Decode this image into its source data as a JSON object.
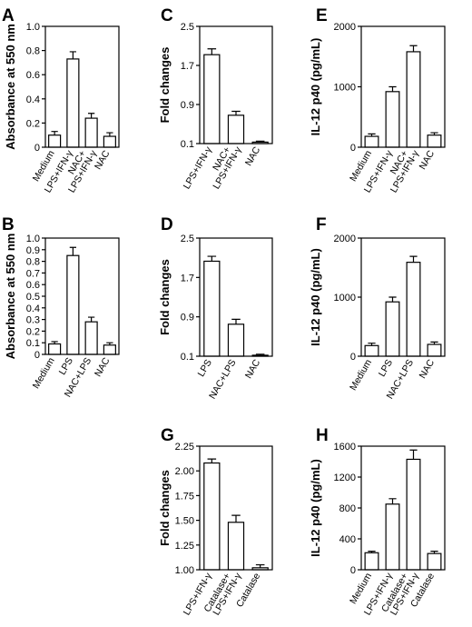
{
  "chart_data": [
    {
      "panel": "A",
      "type": "bar",
      "ylabel": "Absorbance at 550 nm",
      "ylim": [
        0,
        1.0
      ],
      "yticks": [
        "0",
        "0.2",
        "0.4",
        "0.6",
        "0.8",
        "1.0"
      ],
      "categories": [
        [
          "Medium"
        ],
        [
          "LPS+IFN-γ"
        ],
        [
          "NAC+",
          "LPS+IFN-γ"
        ],
        [
          "NAC"
        ]
      ],
      "values": [
        0.1,
        0.73,
        0.24,
        0.09
      ],
      "errors": [
        0.03,
        0.06,
        0.04,
        0.03
      ]
    },
    {
      "panel": "C",
      "type": "bar",
      "ylabel": "Fold changes",
      "ylim": [
        0.1,
        2.5
      ],
      "yticks": [
        "0.1",
        "0.9",
        "1.7",
        "2.5"
      ],
      "categories": [
        [
          "LPS+IFN-γ"
        ],
        [
          "NAC+",
          "LPS+IFN-γ"
        ],
        [
          "NAC"
        ]
      ],
      "values": [
        1.92,
        0.68,
        0.13
      ],
      "errors": [
        0.12,
        0.08,
        0.02
      ]
    },
    {
      "panel": "E",
      "type": "bar",
      "ylabel": "IL-12 p40 (pg/mL)",
      "ylim": [
        0,
        2000
      ],
      "yticks": [
        "0",
        "1000",
        "2000"
      ],
      "categories": [
        [
          "Medium"
        ],
        [
          "LPS+IFN-γ"
        ],
        [
          "NAC+",
          "LPS+IFN-γ"
        ],
        [
          "NAC"
        ]
      ],
      "values": [
        180,
        920,
        1580,
        200
      ],
      "errors": [
        40,
        80,
        100,
        40
      ]
    },
    {
      "panel": "B",
      "type": "bar",
      "ylabel": "Absorbance at 550 nm",
      "ylim": [
        0,
        1.0
      ],
      "yticks": [
        "0",
        "0.1",
        "0.2",
        "0.3",
        "0.4",
        "0.5",
        "0.6",
        "0.7",
        "0.8",
        "0.9",
        "1.0"
      ],
      "categories": [
        [
          "Medium"
        ],
        [
          "LPS"
        ],
        [
          "NAC+LPS"
        ],
        [
          "NAC"
        ]
      ],
      "values": [
        0.09,
        0.85,
        0.28,
        0.08
      ],
      "errors": [
        0.02,
        0.07,
        0.04,
        0.02
      ]
    },
    {
      "panel": "D",
      "type": "bar",
      "ylabel": "Fold changes",
      "ylim": [
        0.1,
        2.5
      ],
      "yticks": [
        "0.1",
        "0.9",
        "1.7",
        "2.5"
      ],
      "categories": [
        [
          "LPS"
        ],
        [
          "NAC+LPS"
        ],
        [
          "NAC"
        ]
      ],
      "values": [
        2.03,
        0.75,
        0.12
      ],
      "errors": [
        0.1,
        0.1,
        0.02
      ]
    },
    {
      "panel": "F",
      "type": "bar",
      "ylabel": "IL-12 p40 (pg/mL)",
      "ylim": [
        0,
        2000
      ],
      "yticks": [
        "0",
        "1000",
        "2000"
      ],
      "categories": [
        [
          "Medium"
        ],
        [
          "LPS"
        ],
        [
          "NAC+LPS"
        ],
        [
          "NAC"
        ]
      ],
      "values": [
        180,
        920,
        1590,
        200
      ],
      "errors": [
        40,
        80,
        100,
        40
      ]
    },
    {
      "panel": "G",
      "type": "bar",
      "ylabel": "Fold changes",
      "ylim": [
        1.0,
        2.25
      ],
      "yticks": [
        "1.00",
        "1.25",
        "1.50",
        "1.75",
        "2.00",
        "2.25"
      ],
      "categories": [
        [
          "LPS+IFN-γ"
        ],
        [
          "Catalase+",
          "LPS+IFN-γ"
        ],
        [
          "Catalase"
        ]
      ],
      "values": [
        2.08,
        1.48,
        1.02
      ],
      "errors": [
        0.04,
        0.07,
        0.03
      ]
    },
    {
      "panel": "H",
      "type": "bar",
      "ylabel": "IL-12 p40 (pg/mL)",
      "ylim": [
        0,
        1600
      ],
      "yticks": [
        "0",
        "400",
        "800",
        "1200",
        "1600"
      ],
      "categories": [
        [
          "Medium"
        ],
        [
          "LPS+IFN-γ"
        ],
        [
          "Catalase+",
          "LPS+IFN-γ"
        ],
        [
          "Catalase"
        ]
      ],
      "values": [
        220,
        850,
        1430,
        210
      ],
      "errors": [
        20,
        70,
        120,
        30
      ]
    }
  ]
}
